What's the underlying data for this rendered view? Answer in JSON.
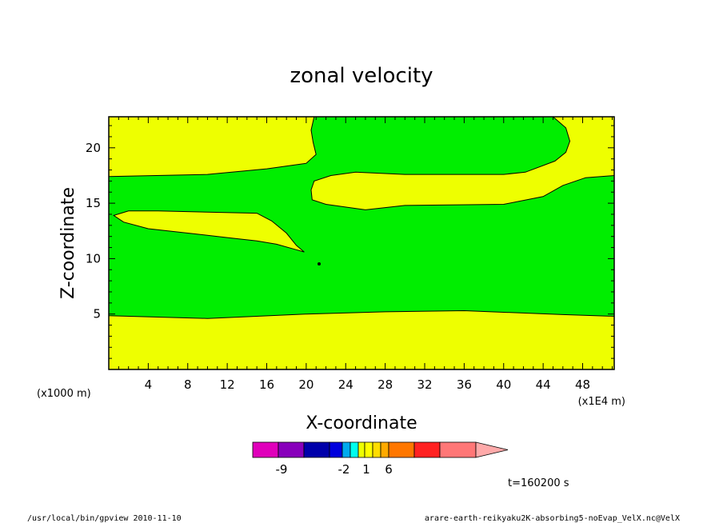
{
  "chart_data": {
    "type": "heatmap",
    "title": "zonal velocity",
    "xlabel": "X-coordinate",
    "ylabel": "Z-coordinate",
    "x_unit": "(x1E4 m)",
    "y_unit": "(x1000 m)",
    "xlim": [
      0,
      51.2
    ],
    "ylim": [
      0,
      22.8
    ],
    "x_ticks": [
      4,
      8,
      12,
      16,
      20,
      24,
      28,
      32,
      36,
      40,
      44,
      48
    ],
    "y_ticks": [
      5,
      10,
      15,
      20
    ],
    "background_color": "#eeff00",
    "regions": [
      {
        "color": "#00ee00",
        "points": [
          [
            0,
            17.4
          ],
          [
            10,
            17.6
          ],
          [
            16,
            18.1
          ],
          [
            20,
            18.6
          ],
          [
            21,
            19.4
          ],
          [
            20.7,
            20.5
          ],
          [
            20.5,
            21.6
          ],
          [
            20.8,
            22.8
          ],
          [
            45,
            22.8
          ],
          [
            46.3,
            21.8
          ],
          [
            46.7,
            20.6
          ],
          [
            46.3,
            19.6
          ],
          [
            45.2,
            18.8
          ],
          [
            42.2,
            17.8
          ],
          [
            40,
            17.6
          ],
          [
            30,
            17.6
          ],
          [
            25,
            17.8
          ],
          [
            22.5,
            17.5
          ],
          [
            20.8,
            17.0
          ],
          [
            20.5,
            16.2
          ],
          [
            20.6,
            15.3
          ],
          [
            22,
            14.9
          ],
          [
            26,
            14.4
          ],
          [
            30,
            14.8
          ],
          [
            40,
            14.9
          ],
          [
            44,
            15.6
          ],
          [
            46,
            16.6
          ],
          [
            48.3,
            17.3
          ],
          [
            51.2,
            17.5
          ],
          [
            51.2,
            4.8
          ],
          [
            46,
            4.95
          ],
          [
            36,
            5.3
          ],
          [
            28,
            5.2
          ],
          [
            20,
            5.0
          ],
          [
            10,
            4.6
          ],
          [
            0,
            4.85
          ]
        ]
      },
      {
        "color": "#eeff00",
        "points": [
          [
            0.5,
            13.9
          ],
          [
            2,
            14.3
          ],
          [
            5,
            14.3
          ],
          [
            10,
            14.2
          ],
          [
            15,
            14.1
          ],
          [
            16.5,
            13.4
          ],
          [
            18,
            12.3
          ],
          [
            19,
            11.2
          ],
          [
            19.8,
            10.6
          ],
          [
            19,
            10.8
          ],
          [
            17,
            11.3
          ],
          [
            15,
            11.6
          ],
          [
            12,
            11.9
          ],
          [
            8,
            12.3
          ],
          [
            4,
            12.7
          ],
          [
            1.5,
            13.3
          ]
        ]
      }
    ],
    "colorbar": {
      "colors": [
        "#e000bb",
        "#8800bb",
        "#0000aa",
        "#0000dd",
        "#00aaee",
        "#00ffee",
        "#eeff00",
        "#ffff00",
        "#ffdd00",
        "#ffaa00",
        "#ff7700",
        "#ff2222",
        "#ff7777",
        "#ffaaaa"
      ],
      "labels": [
        "-9",
        "-2",
        "1",
        "6"
      ]
    },
    "annotation": "t=160200 s"
  },
  "footer": {
    "left": "/usr/local/bin/gpview  2010-11-10",
    "right": "arare-earth-reikyaku2K-absorbing5-noEvap_VelX.nc@VelX"
  }
}
